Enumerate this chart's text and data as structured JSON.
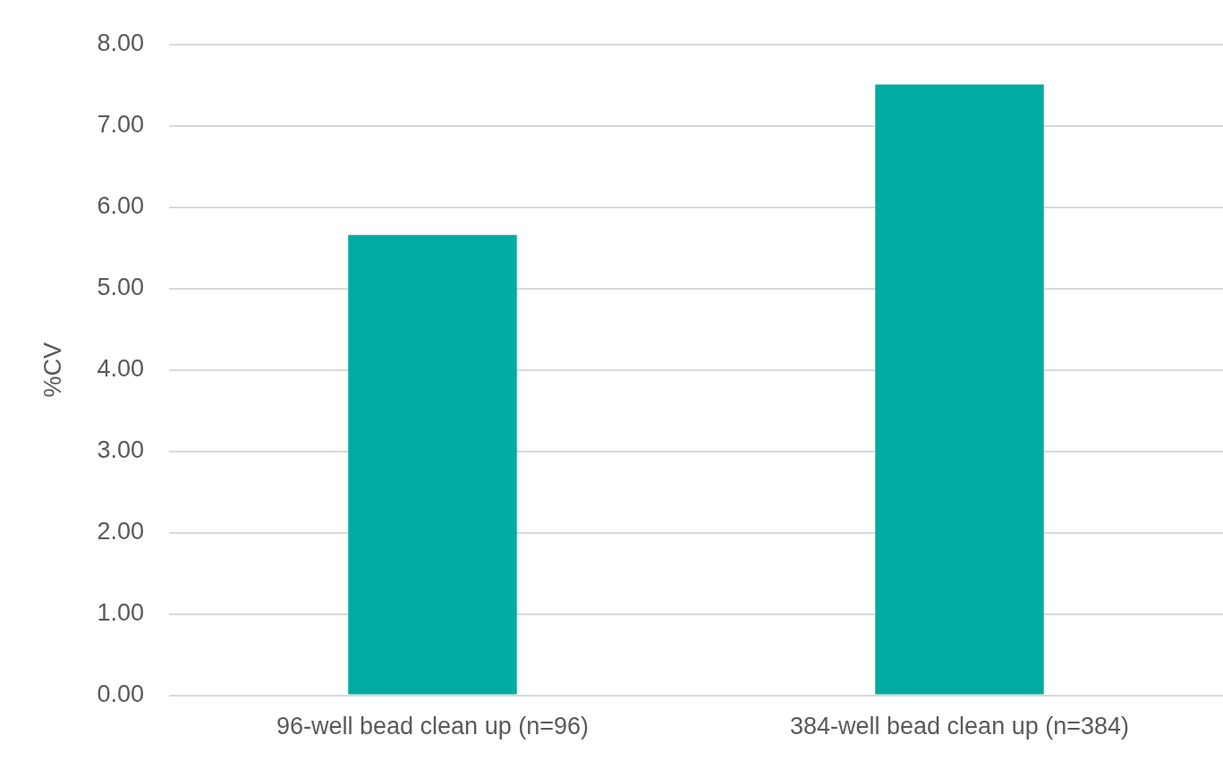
{
  "chart_data": {
    "type": "bar",
    "ylabel": "%CV",
    "categories": [
      "96-well bead clean up (n=96)",
      "384-well bead clean up (n=384)"
    ],
    "values": [
      5.66,
      7.51
    ],
    "color": "#00aca2",
    "ylim": [
      0,
      8
    ],
    "yticks": [
      {
        "value": 0,
        "label": "0.00"
      },
      {
        "value": 1,
        "label": "1.00"
      },
      {
        "value": 2,
        "label": "2.00"
      },
      {
        "value": 3,
        "label": "3.00"
      },
      {
        "value": 4,
        "label": "4.00"
      },
      {
        "value": 5,
        "label": "5.00"
      },
      {
        "value": 6,
        "label": "6.00"
      },
      {
        "value": 7,
        "label": "7.00"
      },
      {
        "value": 8,
        "label": "8.00"
      }
    ],
    "grid": "y"
  }
}
